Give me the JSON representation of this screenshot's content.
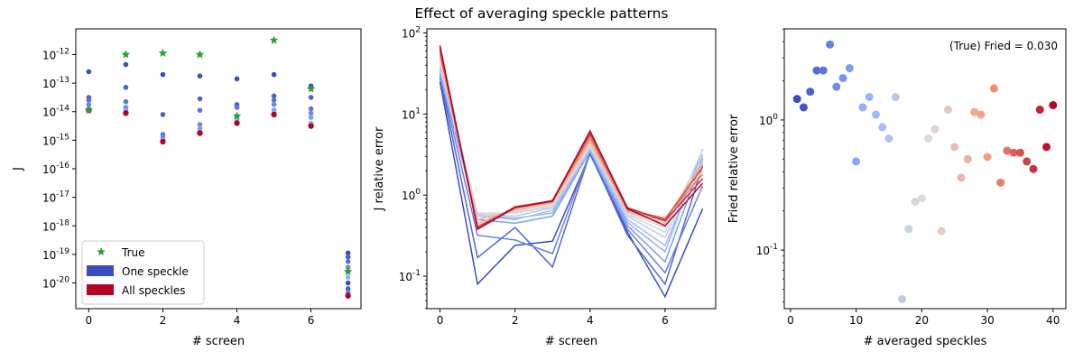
{
  "figure": {
    "title": "Effect of averaging speckle patterns"
  },
  "colors": {
    "true_marker": "#2ca02c",
    "one_speckle": "#3b4cc0",
    "all_speckles": "#b40426",
    "axes": "#000000"
  },
  "chart_data": [
    {
      "type": "scatter",
      "yscale": "log",
      "xlabel": "# screen",
      "ylabel": "J",
      "xlim": [
        -0.35,
        7.35
      ],
      "ylim_exp": [
        -20.9,
        -11.1
      ],
      "xticks": [
        0,
        2,
        4,
        6
      ],
      "yticks_exp": [
        -20,
        -19,
        -18,
        -17,
        -16,
        -15,
        -14,
        -13,
        -12
      ],
      "legend": {
        "placement": "lower-left",
        "entries": [
          {
            "label": "True",
            "kind": "star",
            "color": "#2ca02c"
          },
          {
            "label": "One speckle",
            "kind": "patch",
            "color": "#3b4cc0"
          },
          {
            "label": "All speckles",
            "kind": "patch",
            "color": "#b40426"
          }
        ]
      },
      "series": [
        {
          "name": "True",
          "marker": "star",
          "color": "#2ca02c",
          "x": [
            0,
            1,
            2,
            3,
            4,
            5,
            6,
            7
          ],
          "y_exp": [
            -13.95,
            -12.0,
            -11.95,
            -12.0,
            -14.15,
            -11.5,
            -13.2,
            -19.6
          ]
        },
        {
          "marker": "dot",
          "color": "#b40426",
          "x": [
            0,
            1,
            2,
            3,
            4,
            5,
            6,
            7
          ],
          "y_exp": [
            -13.95,
            -14.05,
            -15.05,
            -14.75,
            -14.4,
            -14.1,
            -14.5,
            -20.45
          ]
        },
        {
          "marker": "dot",
          "color": "#3b4cc0",
          "x": [
            0,
            0,
            0,
            0,
            0,
            0,
            1,
            1,
            1,
            1,
            1,
            1,
            2,
            2,
            2,
            2,
            2,
            2,
            3,
            3,
            3,
            3,
            3,
            3,
            4,
            4,
            4,
            4,
            4,
            4,
            5,
            5,
            5,
            5,
            5,
            5,
            6,
            6,
            6,
            6,
            6,
            6,
            7,
            7,
            7,
            7,
            7,
            7,
            7,
            7,
            7
          ],
          "y_exp": [
            -12.6,
            -13.5,
            -13.6,
            -13.75,
            -13.9,
            -13.95,
            -12.35,
            -13.15,
            -13.65,
            -13.85,
            -13.95,
            -14.0,
            -12.7,
            -14.1,
            -14.8,
            -14.9,
            -15.0,
            -15.0,
            -12.75,
            -13.55,
            -13.95,
            -14.45,
            -14.6,
            -14.7,
            -12.85,
            -13.75,
            -13.85,
            -14.2,
            -14.35,
            -14.3,
            -12.7,
            -13.45,
            -13.6,
            -13.75,
            -13.95,
            -14.05,
            -13.1,
            -13.5,
            -13.9,
            -14.05,
            -14.2,
            -14.4,
            -18.95,
            -19.1,
            -19.25,
            -19.45,
            -19.6,
            -19.8,
            -20.0,
            -20.2,
            -20.35
          ]
        }
      ]
    },
    {
      "type": "line",
      "yscale": "log",
      "xlabel": "# screen",
      "ylabel": "J relative error",
      "xlim": [
        -0.35,
        7.35
      ],
      "ylim_exp": [
        -1.4,
        2.05
      ],
      "xticks": [
        0,
        2,
        4,
        6
      ],
      "yticks_exp": [
        -1,
        0,
        1,
        2
      ],
      "colormap": "coolwarm",
      "x": [
        0,
        1,
        2,
        3,
        4,
        5,
        6,
        7
      ],
      "series_y": [
        [
          25,
          0.08,
          0.24,
          0.27,
          3.2,
          0.35,
          0.056,
          0.68
        ],
        [
          28,
          0.17,
          0.4,
          0.13,
          3.3,
          0.32,
          0.08,
          2.3
        ],
        [
          30,
          0.32,
          0.28,
          0.19,
          3.4,
          0.38,
          0.11,
          1.3
        ],
        [
          32,
          0.5,
          0.45,
          0.55,
          3.5,
          0.42,
          0.15,
          2.8
        ],
        [
          34,
          0.56,
          0.52,
          0.6,
          3.6,
          0.46,
          0.2,
          3.7
        ],
        [
          36,
          0.55,
          0.5,
          0.65,
          3.7,
          0.5,
          0.24,
          3.2
        ],
        [
          38,
          0.58,
          0.55,
          0.7,
          3.8,
          0.55,
          0.3,
          3.0
        ],
        [
          42,
          0.6,
          0.6,
          0.72,
          4.0,
          0.58,
          0.35,
          3.6
        ],
        [
          45,
          0.55,
          0.62,
          0.75,
          4.2,
          0.6,
          0.4,
          2.6
        ],
        [
          48,
          0.5,
          0.65,
          0.8,
          4.5,
          0.62,
          0.45,
          2.0
        ],
        [
          52,
          0.45,
          0.66,
          0.8,
          4.8,
          0.63,
          0.48,
          2.5
        ],
        [
          55,
          0.42,
          0.7,
          0.82,
          5.0,
          0.65,
          0.5,
          2.4
        ],
        [
          58,
          0.4,
          0.72,
          0.84,
          5.3,
          0.66,
          0.52,
          1.8
        ],
        [
          62,
          0.38,
          0.72,
          0.85,
          5.6,
          0.68,
          0.5,
          2.2
        ],
        [
          66,
          0.4,
          0.7,
          0.86,
          6.0,
          0.7,
          0.48,
          1.6
        ],
        [
          70,
          0.38,
          0.7,
          0.84,
          6.2,
          0.68,
          0.42,
          1.4
        ]
      ]
    },
    {
      "type": "scatter",
      "yscale": "log",
      "xlabel": "# averaged speckles",
      "ylabel": "Fried relative error",
      "xlim": [
        -0.95,
        41.95
      ],
      "ylim_exp": [
        -1.45,
        0.7
      ],
      "xticks": [
        0,
        10,
        20,
        30,
        40
      ],
      "yticks_exp": [
        -1,
        0
      ],
      "annotation": "(True) Fried = 0.030",
      "colormap": "coolwarm",
      "x": [
        1,
        2,
        3,
        4,
        5,
        6,
        7,
        8,
        9,
        10,
        11,
        12,
        13,
        14,
        15,
        16,
        17,
        18,
        19,
        20,
        21,
        22,
        23,
        24,
        25,
        26,
        27,
        28,
        29,
        30,
        31,
        32,
        33,
        34,
        35,
        36,
        37,
        38,
        39,
        40
      ],
      "y": [
        1.45,
        1.25,
        1.65,
        2.4,
        2.4,
        3.8,
        1.8,
        2.1,
        2.5,
        0.48,
        1.25,
        1.5,
        1.1,
        0.88,
        0.72,
        1.5,
        0.042,
        0.145,
        0.235,
        0.25,
        0.72,
        0.85,
        0.14,
        1.2,
        0.62,
        0.36,
        0.5,
        1.15,
        1.1,
        0.52,
        1.75,
        0.33,
        0.58,
        0.56,
        0.56,
        0.48,
        0.42,
        1.2,
        0.62,
        1.3
      ]
    }
  ]
}
